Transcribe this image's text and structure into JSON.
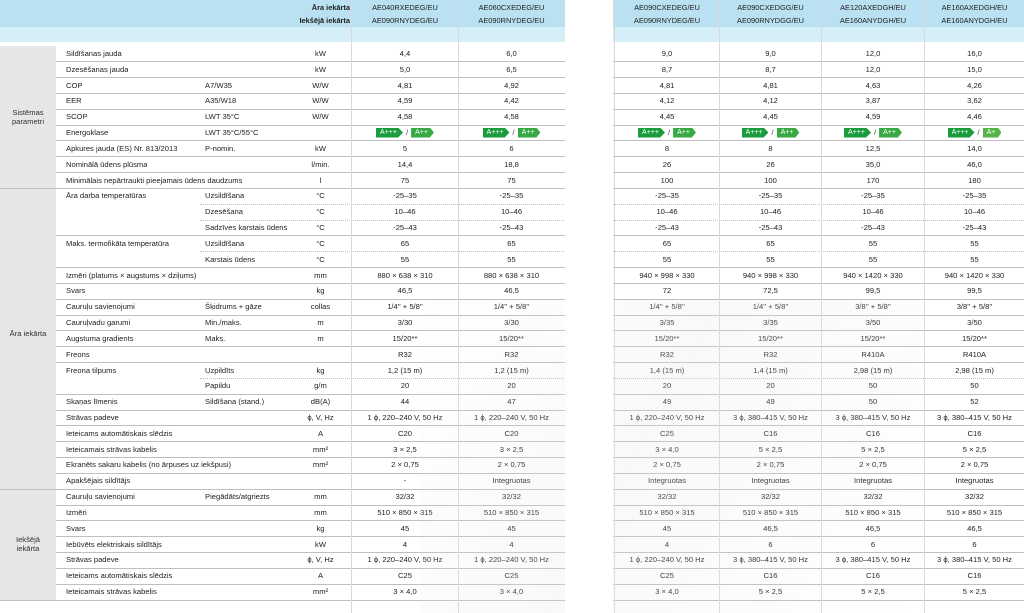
{
  "header": {
    "outdoor_label": "Āra iekārta",
    "indoor_label": "Iekšējā iekārta",
    "outdoor_models": [
      "AE040RXEDEG/EU",
      "AE060CXEDEG/EU",
      "AE090CXEDEG/EU",
      "AE090CXEDGG/EU",
      "AE120AXEDGH/EU",
      "AE160AXEDGH/EU"
    ],
    "indoor_models": [
      "AE090RNYDEG/EU",
      "AE090RNYDEG/EU",
      "AE090RNYDEG/EU",
      "AE090RNYDGG/EU",
      "AE160ANYDGH/EU",
      "AE160ANYDGH/EU"
    ]
  },
  "sections": {
    "system": "Sistēmas parametri",
    "outdoor": "Āra iekārta",
    "indoor": "Iekšējā iekārta"
  },
  "rows": [
    {
      "label": "Sildīšanas jauda",
      "sub": "",
      "unit": "kW",
      "values": [
        "4,4",
        "6,0",
        "9,0",
        "9,0",
        "12,0",
        "16,0"
      ]
    },
    {
      "label": "Dzesēšanas jauda",
      "sub": "",
      "unit": "kW",
      "values": [
        "5,0",
        "6,5",
        "8,7",
        "8,7",
        "12,0",
        "15,0"
      ]
    },
    {
      "label": "COP",
      "sub": "A7/W35",
      "unit": "W/W",
      "values": [
        "4,81",
        "4,92",
        "4,81",
        "4,81",
        "4,63",
        "4,26"
      ]
    },
    {
      "label": "EER",
      "sub": "A35/W18",
      "unit": "W/W",
      "values": [
        "4,59",
        "4,42",
        "4,12",
        "4,12",
        "3,87",
        "3,62"
      ]
    },
    {
      "label": "SCOP",
      "sub": "LWT 35°C",
      "unit": "W/W",
      "values": [
        "4,58",
        "4,58",
        "4,45",
        "4,45",
        "4,59",
        "4,46"
      ]
    },
    {
      "label": "Energoklase",
      "sub": "LWT 35°C/55°C",
      "unit": "",
      "energy": [
        [
          "A+++",
          "A++"
        ],
        [
          "A+++",
          "A++"
        ],
        [
          "A+++",
          "A++"
        ],
        [
          "A+++",
          "A++"
        ],
        [
          "A+++",
          "A++"
        ],
        [
          "A+++",
          "A+"
        ]
      ]
    },
    {
      "label": "Apkures jauda (ES) Nr. 813/2013",
      "sub": "P-nomin.",
      "unit": "kW",
      "values": [
        "5",
        "6",
        "8",
        "8",
        "12,5",
        "14,0"
      ]
    },
    {
      "label": "Nominālā ūdens plūsma",
      "sub": "",
      "unit": "l/min.",
      "values": [
        "14,4",
        "18,8",
        "26",
        "26",
        "35,0",
        "46,0"
      ]
    },
    {
      "label": "Minimālais nepārtraukti pieejamais ūdens daudzums",
      "sub": "",
      "unit": "l",
      "values": [
        "75",
        "75",
        "100",
        "100",
        "170",
        "180"
      ]
    },
    {
      "label": "Āra darba temperatūras",
      "sub": "Uzsildīšana",
      "unit": "°C",
      "values": [
        "-25–35",
        "-25–35",
        "-25–35",
        "-25–35",
        "-25–35",
        "-25–35"
      ]
    },
    {
      "label": "",
      "sub": "Dzesēšana",
      "unit": "°C",
      "values": [
        "10–46",
        "10–46",
        "10–46",
        "10–46",
        "10–46",
        "10–46"
      ]
    },
    {
      "label": "",
      "sub": "Sadzīves karstais ūdens",
      "unit": "°C",
      "values": [
        "-25–43",
        "-25–43",
        "-25–43",
        "-25–43",
        "-25–43",
        "-25–43"
      ]
    },
    {
      "label": "Maks. termofikāta temperatūra",
      "sub": "Uzsildīšana",
      "unit": "°C",
      "values": [
        "65",
        "65",
        "65",
        "65",
        "55",
        "55"
      ]
    },
    {
      "label": "",
      "sub": "Karstais ūdens",
      "unit": "°C",
      "values": [
        "55",
        "55",
        "55",
        "55",
        "55",
        "55"
      ]
    },
    {
      "label": "Izmēri (platums × augstums × dziļums)",
      "sub": "",
      "unit": "mm",
      "values": [
        "880 × 638 × 310",
        "880 × 638 × 310",
        "940 × 998 × 330",
        "940 × 998 × 330",
        "940 × 1420 × 330",
        "940 × 1420 × 330"
      ]
    },
    {
      "label": "Svars",
      "sub": "",
      "unit": "kg",
      "values": [
        "46,5",
        "46,5",
        "72",
        "72,5",
        "99,5",
        "99,5"
      ]
    },
    {
      "label": "Cauruļu savienojumi",
      "sub": "Šķidrums + gāze",
      "unit": "collas",
      "values": [
        "1/4'' + 5/8''",
        "1/4'' + 5/8''",
        "1/4'' + 5/8''",
        "1/4'' + 5/8''",
        "3/8'' + 5/8''",
        "3/8'' + 5/8''"
      ]
    },
    {
      "label": "Cauruļvadu garumi",
      "sub": "Min./maks.",
      "unit": "m",
      "values": [
        "3/30",
        "3/30",
        "3/35",
        "3/35",
        "3/50",
        "3/50"
      ]
    },
    {
      "label": "Augstuma gradients",
      "sub": "Maks.",
      "unit": "m",
      "values": [
        "15/20**",
        "15/20**",
        "15/20**",
        "15/20**",
        "15/20**",
        "15/20**"
      ]
    },
    {
      "label": "Freons",
      "sub": "",
      "unit": "",
      "values": [
        "R32",
        "R32",
        "R32",
        "R32",
        "R410A",
        "R410A"
      ]
    },
    {
      "label": "Freona tilpums",
      "sub": "Uzpildīts",
      "unit": "kg",
      "values": [
        "1,2 (15 m)",
        "1,2 (15 m)",
        "1,4 (15 m)",
        "1,4 (15 m)",
        "2,98 (15 m)",
        "2,98 (15 m)"
      ]
    },
    {
      "label": "",
      "sub": "Papildu",
      "unit": "g/m",
      "values": [
        "20",
        "20",
        "20",
        "20",
        "50",
        "50"
      ]
    },
    {
      "label": "Skaņas līmenis",
      "sub": "Sildīšana (stand.)",
      "unit": "dB(A)",
      "values": [
        "44",
        "47",
        "49",
        "49",
        "50",
        "52"
      ]
    },
    {
      "label": "Strāvas padeve",
      "sub": "",
      "unit": "ϕ, V, Hz",
      "values": [
        "1 ϕ, 220–240 V, 50 Hz",
        "1 ϕ, 220–240 V, 50 Hz",
        "1 ϕ, 220–240 V, 50 Hz",
        "3 ϕ, 380–415 V, 50 Hz",
        "3 ϕ, 380–415 V, 50 Hz",
        "3 ϕ, 380–415 V, 50 Hz"
      ]
    },
    {
      "label": "Ieteicams automātiskais slēdzis",
      "sub": "",
      "unit": "A",
      "values": [
        "C20",
        "C20",
        "C25",
        "C16",
        "C16",
        "C16"
      ]
    },
    {
      "label": "Ieteicamais strāvas kabelis",
      "sub": "",
      "unit": "mm²",
      "values": [
        "3 × 2,5",
        "3 × 2,5",
        "3 × 4,0",
        "5 × 2,5",
        "5 × 2,5",
        "5 × 2,5"
      ]
    },
    {
      "label": "Ekranēts sakaru kabelis (no ārpuses uz iekšpusi)",
      "sub": "",
      "unit": "mm²",
      "values": [
        "2 × 0,75",
        "2 × 0,75",
        "2 × 0,75",
        "2 × 0,75",
        "2 × 0,75",
        "2 × 0,75"
      ]
    },
    {
      "label": "Apakšējais sildītājs",
      "sub": "",
      "unit": "",
      "values": [
        "-",
        "Integruotas",
        "Integruotas",
        "Integruotas",
        "Integruotas",
        "Integruotas"
      ]
    },
    {
      "label": "Cauruļu savienojumi",
      "sub": "Piegādāts/atgriezts",
      "unit": "mm",
      "values": [
        "32/32",
        "32/32",
        "32/32",
        "32/32",
        "32/32",
        "32/32"
      ]
    },
    {
      "label": "Izmēri",
      "sub": "",
      "unit": "mm",
      "values": [
        "510 × 850 × 315",
        "510 × 850 × 315",
        "510 × 850 × 315",
        "510 × 850 × 315",
        "510 × 850 × 315",
        "510 × 850 × 315"
      ]
    },
    {
      "label": "Svars",
      "sub": "",
      "unit": "kg",
      "values": [
        "45",
        "45",
        "45",
        "46,5",
        "46,5",
        "46,5"
      ]
    },
    {
      "label": "Iebūvēts elektriskais sildītājs",
      "sub": "",
      "unit": "kW",
      "values": [
        "4",
        "4",
        "4",
        "6",
        "6",
        "6"
      ]
    },
    {
      "label": "Strāvas padeve",
      "sub": "",
      "unit": "ϕ, V, Hz",
      "values": [
        "1 ϕ, 220–240 V, 50 Hz",
        "1 ϕ, 220–240 V, 50 Hz",
        "1 ϕ, 220–240 V, 50 Hz",
        "3 ϕ, 380–415 V, 50 Hz",
        "3 ϕ, 380–415 V, 50 Hz",
        "3 ϕ, 380–415 V, 50 Hz"
      ]
    },
    {
      "label": "Ieteicams automātiskais slēdzis",
      "sub": "",
      "unit": "A",
      "values": [
        "C25",
        "C25",
        "C25",
        "C16",
        "C16",
        "C16"
      ]
    },
    {
      "label": "Ieteicamais strāvas kabelis",
      "sub": "",
      "unit": "mm²",
      "values": [
        "3 × 4,0",
        "3 × 4,0",
        "3 × 4,0",
        "5 × 2,5",
        "5 × 2,5",
        "5 × 2,5"
      ]
    }
  ],
  "colors": {
    "header_blue": "#b9e1f1",
    "section_grey": "#e6e6e6",
    "energy_green": "#1a9b3c"
  }
}
